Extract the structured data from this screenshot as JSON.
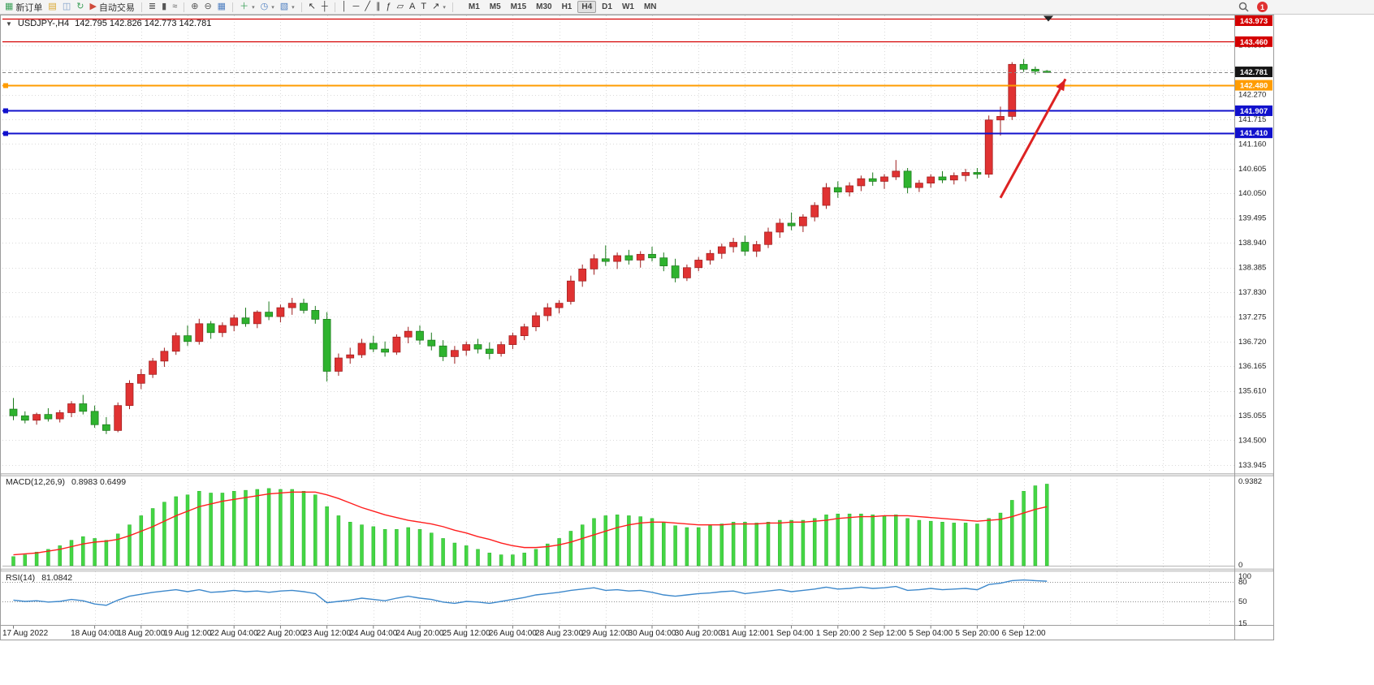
{
  "header": {
    "collapse_icon": "▼",
    "symbol_period": "USDJPY-,H4",
    "ohlc": "142.795 142.826 142.773 142.781"
  },
  "toolbar": {
    "notification_count": "1",
    "items": [
      {
        "name": "new-order",
        "icon": "new-order-icon",
        "glyph": "▦",
        "color": "#3da05a",
        "label": "新订单"
      },
      {
        "name": "chart-window",
        "icon": "chart-window-icon",
        "glyph": "▤",
        "color": "#d9a62e"
      },
      {
        "name": "profiles",
        "icon": "profiles-icon",
        "glyph": "◫",
        "color": "#7a9cc6"
      },
      {
        "name": "refresh",
        "icon": "refresh-icon",
        "glyph": "↻",
        "color": "#3da05a"
      },
      {
        "name": "auto-trading",
        "icon": "auto-trading-icon",
        "glyph": "▶",
        "color": "#cf4a3a",
        "label": "自动交易"
      },
      {
        "sep": true
      },
      {
        "name": "bar-chart",
        "icon": "bar-chart-icon",
        "glyph": "≣",
        "color": "#555"
      },
      {
        "name": "candlestick-chart",
        "icon": "candlestick-chart-icon",
        "glyph": "▮",
        "color": "#555"
      },
      {
        "name": "line-chart",
        "icon": "line-chart-icon",
        "glyph": "≈",
        "color": "#555"
      },
      {
        "sep": true
      },
      {
        "name": "zoom-in",
        "icon": "zoom-in-icon",
        "glyph": "⊕",
        "color": "#555"
      },
      {
        "name": "zoom-out",
        "icon": "zoom-out-icon",
        "glyph": "⊖",
        "color": "#555"
      },
      {
        "name": "tile-windows",
        "icon": "tile-windows-icon",
        "glyph": "▦",
        "color": "#4d7ec0"
      },
      {
        "sep": true
      },
      {
        "name": "indicators",
        "icon": "indicators-icon",
        "glyph": "＋",
        "color": "#3da05a",
        "dd": true
      },
      {
        "name": "periods",
        "icon": "clock-icon",
        "glyph": "◷",
        "color": "#4d7ec0",
        "dd": true
      },
      {
        "name": "templates",
        "icon": "templates-icon",
        "glyph": "▧",
        "color": "#4d7ec0",
        "dd": true
      },
      {
        "sep": true
      },
      {
        "name": "cursor",
        "icon": "cursor-icon",
        "glyph": "↖",
        "color": "#333"
      },
      {
        "name": "crosshair",
        "icon": "crosshair-icon",
        "glyph": "┼",
        "color": "#333"
      },
      {
        "sep": true
      },
      {
        "name": "vertical-line",
        "icon": "vertical-line-icon",
        "glyph": "│",
        "color": "#333"
      },
      {
        "name": "horizontal-line",
        "icon": "horizontal-line-icon",
        "glyph": "─",
        "color": "#333"
      },
      {
        "name": "trendline",
        "icon": "trendline-icon",
        "glyph": "╱",
        "color": "#333"
      },
      {
        "name": "equidistant-channel",
        "icon": "channel-icon",
        "glyph": "∥",
        "color": "#333"
      },
      {
        "name": "fibonacci",
        "icon": "fibonacci-icon",
        "glyph": "ƒ",
        "color": "#333"
      },
      {
        "name": "shapes",
        "icon": "shapes-icon",
        "glyph": "▱",
        "color": "#333"
      },
      {
        "name": "text",
        "icon": "text-icon",
        "glyph": "A",
        "color": "#333"
      },
      {
        "name": "text-label",
        "icon": "text-label-icon",
        "glyph": "T",
        "color": "#333"
      },
      {
        "name": "arrows",
        "icon": "arrows-icon",
        "glyph": "↗",
        "color": "#333",
        "dd": true
      },
      {
        "sep": true
      }
    ],
    "timeframes": [
      {
        "label": "M1"
      },
      {
        "label": "M5"
      },
      {
        "label": "M15"
      },
      {
        "label": "M30"
      },
      {
        "label": "H1"
      },
      {
        "label": "H4",
        "active": true
      },
      {
        "label": "D1"
      },
      {
        "label": "W1"
      },
      {
        "label": "MN"
      }
    ]
  },
  "chart_data": {
    "type": "candlestick",
    "symbol": "USDJPY-",
    "timeframe": "H4",
    "ylim": [
      133.76,
      144.05
    ],
    "colors": {
      "bull": "#e03232",
      "bull_stroke": "#9e1f1f",
      "bear": "#2eb32e",
      "bear_stroke": "#1d7a1d",
      "grid": "#dadada",
      "macd_hist": "#44d644",
      "macd_hist_stroke": "#2db32d",
      "macd_signal": "#ff1e1e",
      "rsi_line": "#3e89cc",
      "axis_text": "#222"
    },
    "candles": [
      [
        135.2,
        135.45,
        134.95,
        135.05
      ],
      [
        135.05,
        135.15,
        134.88,
        134.95
      ],
      [
        134.95,
        135.12,
        134.85,
        135.08
      ],
      [
        135.08,
        135.22,
        134.92,
        134.98
      ],
      [
        134.98,
        135.18,
        134.9,
        135.12
      ],
      [
        135.12,
        135.38,
        135.02,
        135.32
      ],
      [
        135.32,
        135.52,
        135.08,
        135.15
      ],
      [
        135.15,
        135.28,
        134.78,
        134.85
      ],
      [
        134.85,
        135.02,
        134.64,
        134.72
      ],
      [
        134.72,
        135.35,
        134.68,
        135.28
      ],
      [
        135.28,
        135.85,
        135.2,
        135.78
      ],
      [
        135.78,
        136.1,
        135.65,
        135.98
      ],
      [
        135.98,
        136.35,
        135.9,
        136.28
      ],
      [
        136.28,
        136.58,
        136.15,
        136.5
      ],
      [
        136.5,
        136.92,
        136.42,
        136.85
      ],
      [
        136.85,
        137.08,
        136.62,
        136.72
      ],
      [
        136.72,
        137.23,
        136.65,
        137.12
      ],
      [
        137.12,
        137.18,
        136.78,
        136.92
      ],
      [
        136.92,
        137.15,
        136.82,
        137.08
      ],
      [
        137.08,
        137.32,
        136.95,
        137.25
      ],
      [
        137.25,
        137.48,
        137.05,
        137.12
      ],
      [
        137.12,
        137.42,
        137.02,
        137.38
      ],
      [
        137.38,
        137.62,
        137.2,
        137.28
      ],
      [
        137.28,
        137.55,
        137.15,
        137.48
      ],
      [
        137.48,
        137.7,
        137.32,
        137.58
      ],
      [
        137.58,
        137.68,
        137.35,
        137.42
      ],
      [
        137.42,
        137.52,
        137.12,
        137.22
      ],
      [
        137.22,
        137.38,
        135.82,
        136.05
      ],
      [
        136.05,
        136.45,
        135.95,
        136.35
      ],
      [
        136.35,
        136.58,
        136.22,
        136.42
      ],
      [
        136.42,
        136.78,
        136.35,
        136.68
      ],
      [
        136.68,
        136.85,
        136.48,
        136.55
      ],
      [
        136.55,
        136.72,
        136.38,
        136.48
      ],
      [
        136.48,
        136.88,
        136.42,
        136.82
      ],
      [
        136.82,
        137.05,
        136.68,
        136.95
      ],
      [
        136.95,
        137.08,
        136.65,
        136.75
      ],
      [
        136.75,
        136.92,
        136.52,
        136.62
      ],
      [
        136.62,
        136.75,
        136.28,
        136.38
      ],
      [
        136.38,
        136.62,
        136.22,
        136.52
      ],
      [
        136.52,
        136.72,
        136.4,
        136.65
      ],
      [
        136.65,
        136.78,
        136.45,
        136.55
      ],
      [
        136.55,
        136.7,
        136.32,
        136.45
      ],
      [
        136.45,
        136.72,
        136.38,
        136.65
      ],
      [
        136.65,
        136.92,
        136.55,
        136.85
      ],
      [
        136.85,
        137.12,
        136.75,
        137.05
      ],
      [
        137.05,
        137.38,
        136.95,
        137.3
      ],
      [
        137.3,
        137.58,
        137.18,
        137.48
      ],
      [
        137.48,
        137.65,
        137.35,
        137.58
      ],
      [
        137.62,
        138.2,
        137.55,
        138.08
      ],
      [
        138.08,
        138.45,
        137.95,
        138.35
      ],
      [
        138.35,
        138.68,
        138.22,
        138.58
      ],
      [
        138.58,
        138.88,
        138.42,
        138.52
      ],
      [
        138.52,
        138.72,
        138.35,
        138.65
      ],
      [
        138.65,
        138.78,
        138.45,
        138.55
      ],
      [
        138.55,
        138.75,
        138.38,
        138.68
      ],
      [
        138.68,
        138.85,
        138.52,
        138.6
      ],
      [
        138.6,
        138.72,
        138.3,
        138.42
      ],
      [
        138.42,
        138.58,
        138.05,
        138.15
      ],
      [
        138.15,
        138.45,
        138.08,
        138.38
      ],
      [
        138.38,
        138.62,
        138.3,
        138.55
      ],
      [
        138.55,
        138.78,
        138.45,
        138.7
      ],
      [
        138.7,
        138.92,
        138.58,
        138.85
      ],
      [
        138.85,
        139.05,
        138.72,
        138.95
      ],
      [
        138.95,
        139.1,
        138.65,
        138.75
      ],
      [
        138.75,
        138.98,
        138.62,
        138.9
      ],
      [
        138.9,
        139.28,
        138.82,
        139.18
      ],
      [
        139.18,
        139.48,
        139.05,
        139.38
      ],
      [
        139.38,
        139.62,
        139.22,
        139.32
      ],
      [
        139.32,
        139.58,
        139.18,
        139.52
      ],
      [
        139.52,
        139.85,
        139.42,
        139.78
      ],
      [
        139.78,
        140.28,
        139.7,
        140.18
      ],
      [
        140.18,
        140.32,
        139.95,
        140.08
      ],
      [
        140.08,
        140.3,
        139.98,
        140.22
      ],
      [
        140.22,
        140.45,
        140.1,
        140.38
      ],
      [
        140.38,
        140.52,
        140.22,
        140.32
      ],
      [
        140.32,
        140.48,
        140.15,
        140.42
      ],
      [
        140.42,
        140.8,
        140.35,
        140.55
      ],
      [
        140.55,
        140.62,
        140.05,
        140.18
      ],
      [
        140.18,
        140.35,
        140.08,
        140.28
      ],
      [
        140.28,
        140.48,
        140.18,
        140.42
      ],
      [
        140.42,
        140.55,
        140.28,
        140.35
      ],
      [
        140.35,
        140.52,
        140.25,
        140.45
      ],
      [
        140.45,
        140.6,
        140.32,
        140.52
      ],
      [
        140.52,
        140.62,
        140.38,
        140.48
      ],
      [
        140.48,
        141.8,
        140.4,
        141.7
      ],
      [
        141.7,
        142.0,
        141.35,
        141.78
      ],
      [
        141.78,
        143.0,
        141.7,
        142.95
      ],
      [
        142.95,
        143.07,
        142.78,
        142.84
      ],
      [
        142.84,
        142.9,
        142.72,
        142.795
      ],
      [
        142.795,
        142.826,
        142.773,
        142.781
      ]
    ],
    "time_labels": [
      {
        "i": 0,
        "t": "17 Aug 2022"
      },
      {
        "i": 7,
        "t": "18 Aug 04:00"
      },
      {
        "i": 11,
        "t": "18 Aug 20:00"
      },
      {
        "i": 15,
        "t": "19 Aug 12:00"
      },
      {
        "i": 19,
        "t": "22 Aug 04:00"
      },
      {
        "i": 23,
        "t": "22 Aug 20:00"
      },
      {
        "i": 27,
        "t": "23 Aug 12:00"
      },
      {
        "i": 31,
        "t": "24 Aug 04:00"
      },
      {
        "i": 35,
        "t": "24 Aug 20:00"
      },
      {
        "i": 39,
        "t": "25 Aug 12:00"
      },
      {
        "i": 43,
        "t": "26 Aug 04:00"
      },
      {
        "i": 47,
        "t": "28 Aug 23:00"
      },
      {
        "i": 51,
        "t": "29 Aug 12:00"
      },
      {
        "i": 55,
        "t": "30 Aug 04:00"
      },
      {
        "i": 59,
        "t": "30 Aug 20:00"
      },
      {
        "i": 63,
        "t": "31 Aug 12:00"
      },
      {
        "i": 67,
        "t": "1 Sep 04:00"
      },
      {
        "i": 71,
        "t": "1 Sep 20:00"
      },
      {
        "i": 75,
        "t": "2 Sep 12:00"
      },
      {
        "i": 79,
        "t": "5 Sep 04:00"
      },
      {
        "i": 83,
        "t": "5 Sep 20:00"
      },
      {
        "i": 87,
        "t": "6 Sep 12:00"
      }
    ],
    "price_axis": [
      "143.380",
      "142.825",
      "142.270",
      "141.715",
      "141.160",
      "140.605",
      "140.050",
      "139.495",
      "138.940",
      "138.385",
      "137.830",
      "137.275",
      "136.720",
      "136.165",
      "135.610",
      "135.055",
      "134.500",
      "133.945"
    ],
    "hlines": [
      {
        "price": 143.973,
        "label": "143.973",
        "color": "#d40000",
        "width": 1.3,
        "handles": false
      },
      {
        "price": 143.46,
        "label": "143.460",
        "color": "#d40000",
        "width": 1.3,
        "handles": false
      },
      {
        "price": 142.48,
        "label": "142.480",
        "color": "#ff9c00",
        "width": 2,
        "handles": true
      },
      {
        "price": 141.907,
        "label": "141.907",
        "color": "#1111cc",
        "width": 2,
        "handles": true
      },
      {
        "price": 141.41,
        "label": "141.410",
        "color": "#1111cc",
        "width": 2,
        "handles": true
      }
    ],
    "current_price": {
      "value": 142.781,
      "label": "142.781",
      "box_color": "#151515"
    },
    "arrow": {
      "color": "#dd2222",
      "from": {
        "i": 85,
        "p": 139.95
      },
      "to": {
        "i": 90.6,
        "p": 142.62
      }
    },
    "indicators": {
      "macd": {
        "title": "MACD(12,26,9)",
        "values_label": "0.8983 0.6499",
        "ymax": 0.9382,
        "ymax_label": "0.9382",
        "zero_label": "0",
        "histogram": [
          0.1,
          0.12,
          0.15,
          0.18,
          0.22,
          0.28,
          0.32,
          0.3,
          0.28,
          0.35,
          0.45,
          0.55,
          0.63,
          0.7,
          0.76,
          0.78,
          0.82,
          0.8,
          0.8,
          0.82,
          0.83,
          0.84,
          0.85,
          0.84,
          0.84,
          0.82,
          0.78,
          0.65,
          0.55,
          0.48,
          0.45,
          0.43,
          0.4,
          0.4,
          0.42,
          0.4,
          0.36,
          0.3,
          0.25,
          0.22,
          0.18,
          0.14,
          0.12,
          0.12,
          0.14,
          0.18,
          0.24,
          0.3,
          0.38,
          0.45,
          0.52,
          0.55,
          0.56,
          0.55,
          0.54,
          0.52,
          0.48,
          0.44,
          0.42,
          0.42,
          0.44,
          0.46,
          0.48,
          0.48,
          0.47,
          0.48,
          0.5,
          0.5,
          0.5,
          0.52,
          0.56,
          0.57,
          0.57,
          0.57,
          0.56,
          0.55,
          0.56,
          0.52,
          0.5,
          0.49,
          0.48,
          0.47,
          0.47,
          0.46,
          0.52,
          0.58,
          0.72,
          0.82,
          0.88,
          0.8983
        ],
        "signal": [
          0.12,
          0.13,
          0.14,
          0.16,
          0.18,
          0.21,
          0.24,
          0.26,
          0.27,
          0.29,
          0.33,
          0.38,
          0.43,
          0.49,
          0.55,
          0.6,
          0.65,
          0.68,
          0.71,
          0.73,
          0.75,
          0.77,
          0.79,
          0.8,
          0.81,
          0.81,
          0.81,
          0.78,
          0.74,
          0.69,
          0.64,
          0.6,
          0.56,
          0.53,
          0.5,
          0.48,
          0.46,
          0.43,
          0.39,
          0.36,
          0.32,
          0.29,
          0.25,
          0.22,
          0.2,
          0.2,
          0.21,
          0.23,
          0.26,
          0.3,
          0.34,
          0.38,
          0.42,
          0.45,
          0.47,
          0.48,
          0.48,
          0.47,
          0.46,
          0.45,
          0.45,
          0.45,
          0.46,
          0.46,
          0.46,
          0.47,
          0.47,
          0.48,
          0.48,
          0.49,
          0.5,
          0.52,
          0.53,
          0.54,
          0.54,
          0.55,
          0.55,
          0.55,
          0.54,
          0.53,
          0.52,
          0.51,
          0.5,
          0.49,
          0.5,
          0.51,
          0.54,
          0.58,
          0.62,
          0.6499
        ]
      },
      "rsi": {
        "title": "RSI(14)",
        "value_label": "81.0842",
        "levels": [
          80,
          50
        ],
        "axis_labels": [
          {
            "v": 100,
            "t": "100"
          },
          {
            "v": 80,
            "t": "80"
          },
          {
            "v": 50,
            "t": "50"
          },
          {
            "v": 15,
            "t": "15"
          }
        ],
        "values": [
          52,
          50,
          51,
          49,
          50,
          53,
          51,
          46,
          44,
          52,
          58,
          61,
          64,
          66,
          68,
          65,
          68,
          64,
          65,
          67,
          65,
          66,
          64,
          66,
          67,
          65,
          62,
          48,
          50,
          52,
          55,
          53,
          51,
          55,
          58,
          55,
          53,
          49,
          47,
          50,
          49,
          47,
          50,
          53,
          56,
          60,
          62,
          64,
          67,
          69,
          71,
          67,
          68,
          66,
          67,
          64,
          60,
          58,
          60,
          62,
          63,
          65,
          66,
          62,
          64,
          66,
          68,
          65,
          67,
          69,
          72,
          69,
          70,
          72,
          70,
          71,
          73,
          67,
          68,
          70,
          68,
          69,
          70,
          68,
          76,
          78,
          82,
          83,
          82,
          81.08
        ]
      }
    }
  }
}
